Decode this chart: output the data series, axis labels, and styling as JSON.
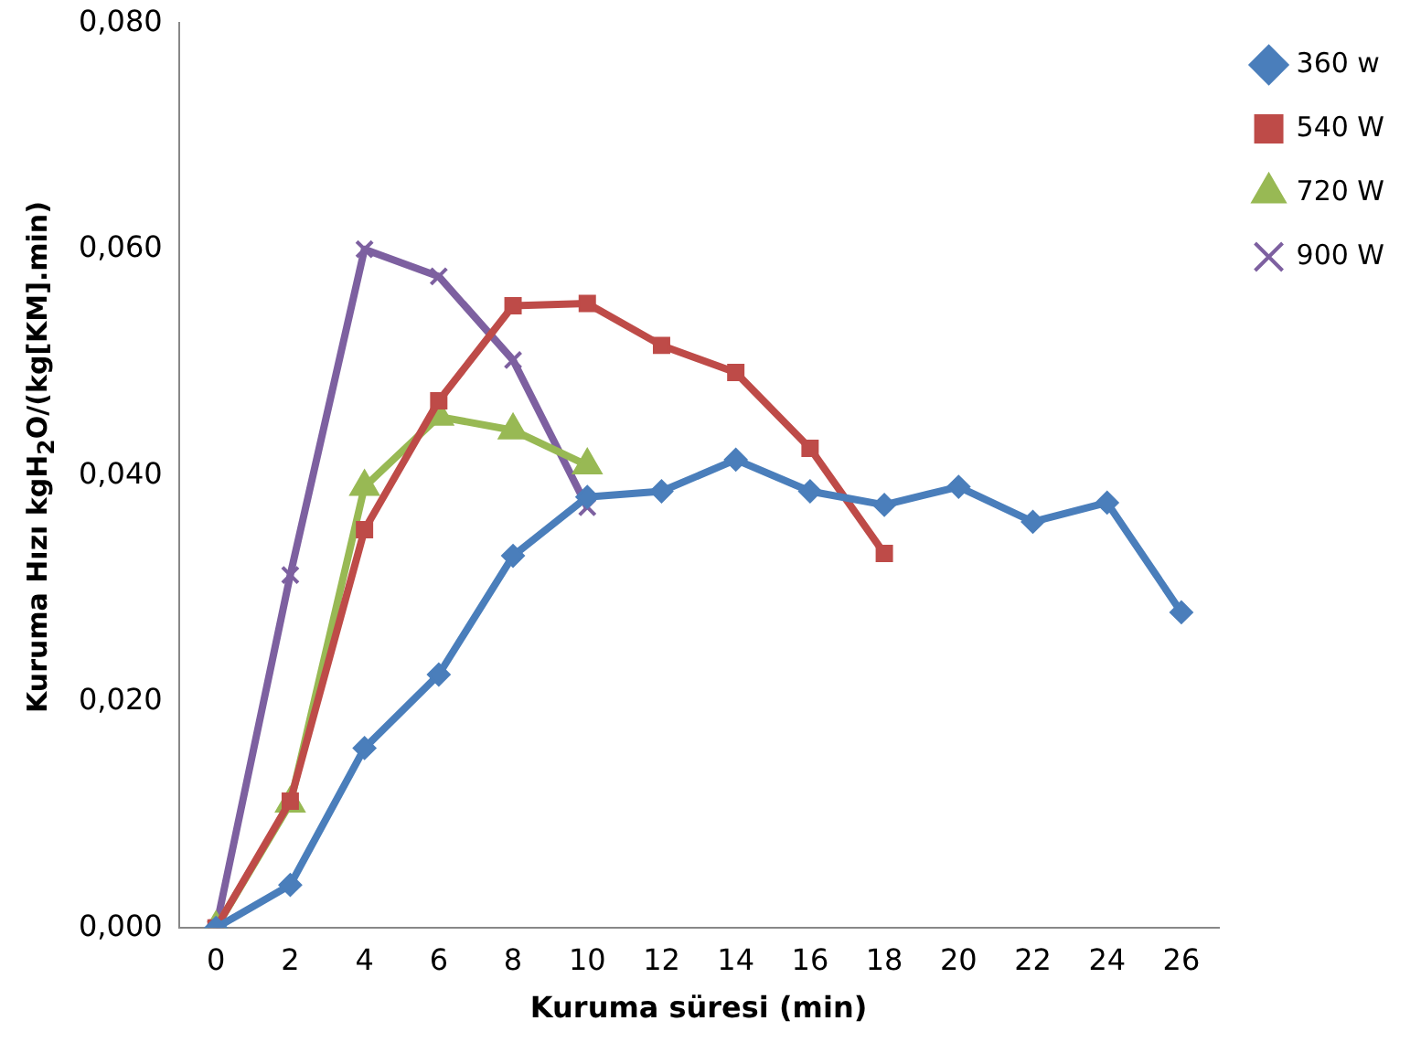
{
  "chart_data": {
    "type": "line",
    "xlabel": "Kuruma süresi (min)",
    "ylabel": "Kuruma Hızı kgH$_{2}$O/(kg[KM].min)",
    "x": [
      0,
      2,
      4,
      6,
      8,
      10,
      12,
      14,
      16,
      18,
      20,
      22,
      24,
      26
    ],
    "xlim": [
      -1,
      27
    ],
    "xticks": [
      0,
      2,
      4,
      6,
      8,
      10,
      12,
      14,
      16,
      18,
      20,
      22,
      24,
      26
    ],
    "series": [
      {
        "name": "360 w",
        "color": "#4a7ebb",
        "marker": "diamond",
        "values": [
          0,
          0.0038,
          0.0159,
          0.0224,
          0.0329,
          0.0381,
          0.0386,
          0.0414,
          0.0386,
          0.0374,
          0.039,
          0.0359,
          0.0376,
          0.0279
        ]
      },
      {
        "name": "540 W",
        "color": "#be4b48",
        "marker": "square",
        "values": [
          0,
          0.0112,
          0.0352,
          0.0466,
          0.055,
          0.0552,
          0.0515,
          0.0491,
          0.0424,
          0.0331,
          null,
          null,
          null,
          null
        ]
      },
      {
        "name": "720 W",
        "color": "#98b954",
        "marker": "triangle",
        "values": [
          0,
          0.011,
          0.039,
          0.0452,
          0.044,
          0.0409,
          null,
          null,
          null,
          null,
          null,
          null,
          null,
          null
        ]
      },
      {
        "name": "900 W",
        "color": "#7d60a0",
        "marker": "cross",
        "values": [
          0,
          0.0312,
          0.06,
          0.0576,
          0.0502,
          0.0372,
          null,
          null,
          null,
          null,
          null,
          null,
          null,
          null
        ]
      }
    ],
    "ylim": [
      0,
      0.08
    ],
    "yticks": [
      {
        "value": 0,
        "label": "0,000"
      },
      {
        "value": 0.02,
        "label": "0,020"
      },
      {
        "value": 0.04,
        "label": "0,040"
      },
      {
        "value": 0.06,
        "label": "0,060"
      },
      {
        "value": 0.08,
        "label": "0,080"
      }
    ],
    "grid": false,
    "legend": "top right",
    "line_style": "solid"
  }
}
